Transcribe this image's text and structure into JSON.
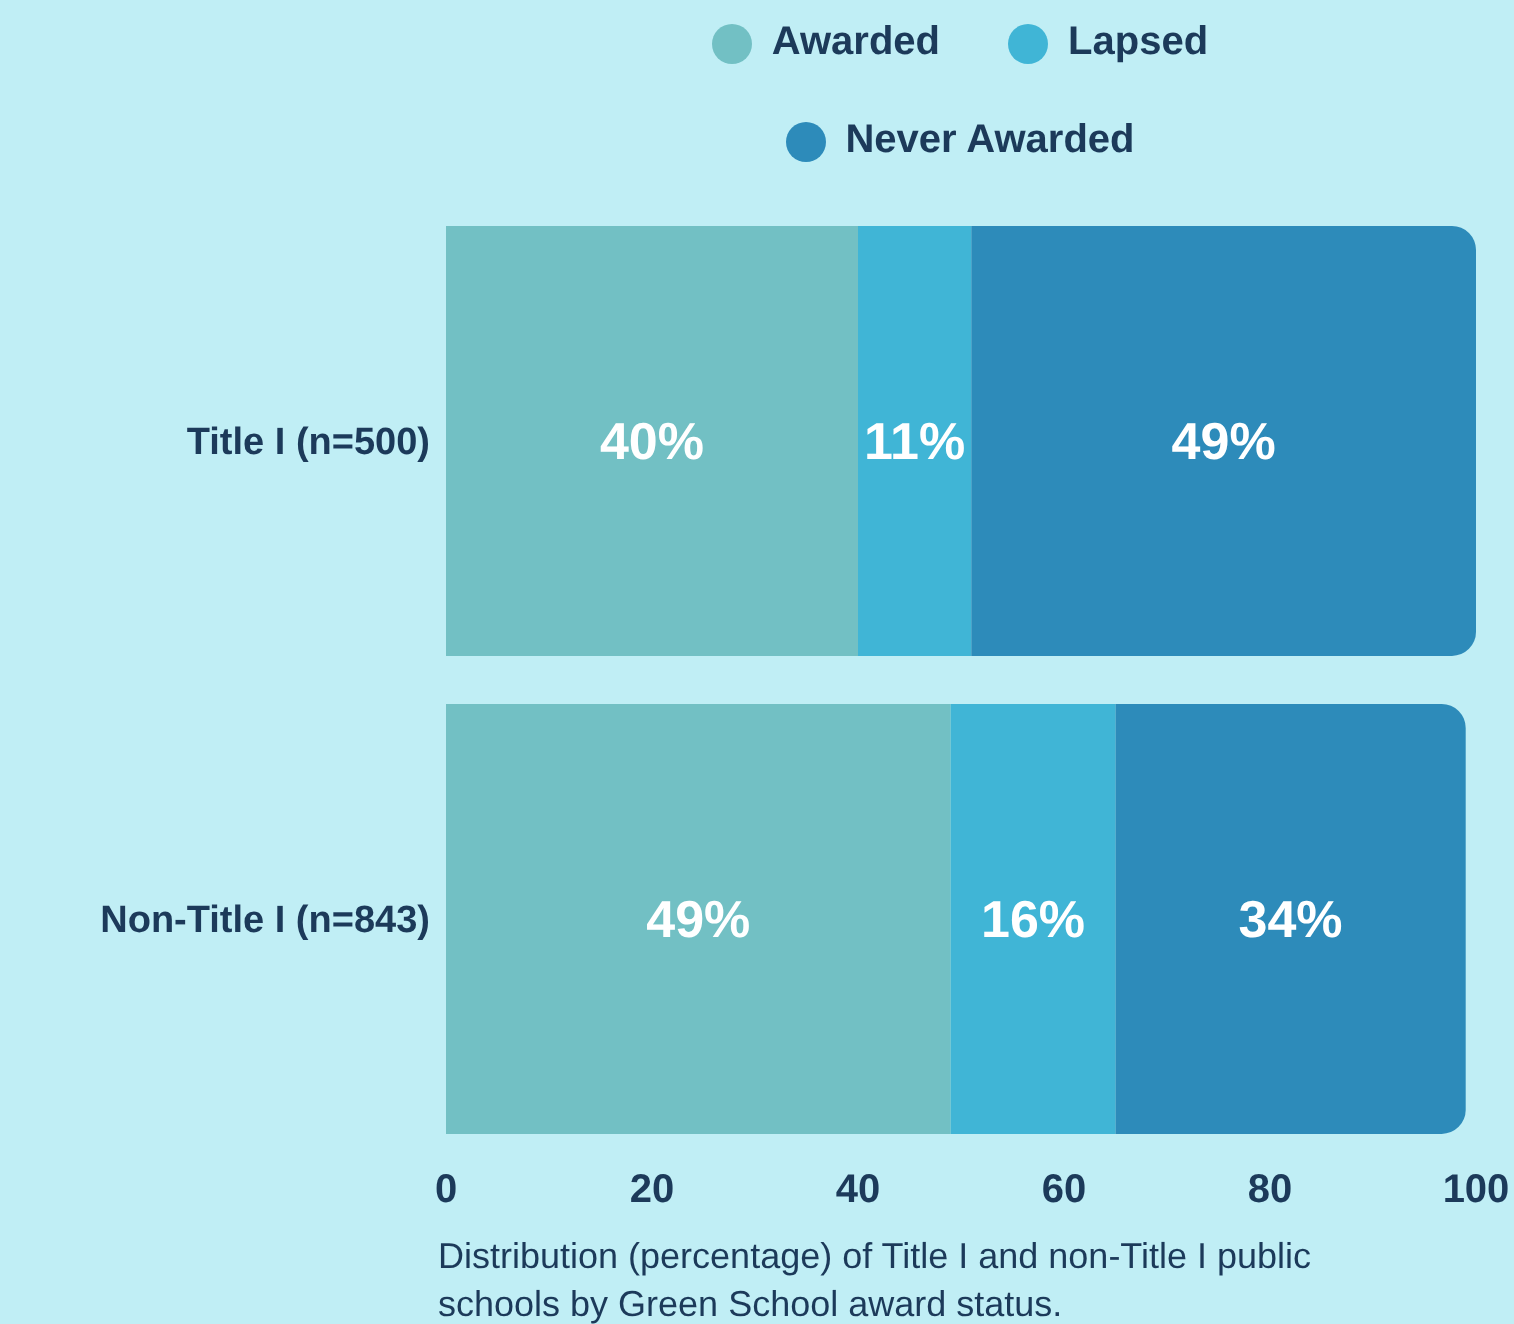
{
  "chart_data": {
    "type": "bar",
    "orientation": "horizontal",
    "stacked": true,
    "categories": [
      "Title I (n=500)",
      "Non-Title I (n=843)"
    ],
    "series": [
      {
        "name": "Awarded",
        "color": "#72c0c4",
        "values": [
          40,
          49
        ],
        "value_labels": [
          "40%",
          "49%"
        ]
      },
      {
        "name": "Lapsed",
        "color": "#40b5d6",
        "values": [
          11,
          16
        ],
        "value_labels": [
          "11%",
          "16%"
        ]
      },
      {
        "name": "Never Awarded",
        "color": "#2d8bba",
        "values": [
          49,
          34
        ],
        "value_labels": [
          "49%",
          "34%"
        ]
      }
    ],
    "xlim": [
      0,
      100
    ],
    "xticks": [
      0,
      20,
      40,
      60,
      80,
      100
    ],
    "grid": false,
    "legend": "top",
    "annotations": [
      "Distribution (percentage) of Title I and non-Title I public schools by Green School award status."
    ]
  }
}
